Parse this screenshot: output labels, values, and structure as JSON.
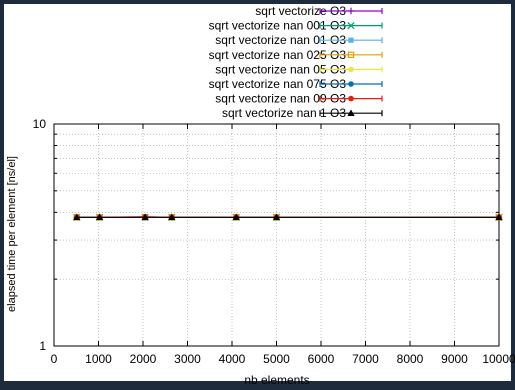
{
  "chart_data": {
    "type": "line",
    "title": "",
    "xlabel": "nb elements",
    "ylabel": "elapsed time per element [ns/el]",
    "xlim": [
      0,
      10000
    ],
    "ylim": [
      1,
      10
    ],
    "yscale": "log",
    "grid": true,
    "legend_position": "top-right",
    "x_ticks": [
      "0",
      "1000",
      "2000",
      "3000",
      "4000",
      "5000",
      "6000",
      "7000",
      "8000",
      "9000",
      "10000"
    ],
    "y_ticks": [
      "1",
      "10"
    ],
    "x": [
      512,
      1024,
      2048,
      2646,
      4096,
      5000,
      10000
    ],
    "series": [
      {
        "name": "sqrt vectorize O3",
        "color": "#9400d3",
        "marker": "plus",
        "values": [
          3.8,
          3.8,
          3.8,
          3.8,
          3.8,
          3.8,
          3.8
        ]
      },
      {
        "name": "sqrt vectorize nan 001 O3",
        "color": "#009e73",
        "marker": "cross",
        "values": [
          3.8,
          3.8,
          3.8,
          3.8,
          3.8,
          3.8,
          3.8
        ]
      },
      {
        "name": "sqrt vectorize nan 01 O3",
        "color": "#56b4e9",
        "marker": "square",
        "values": [
          3.8,
          3.8,
          3.8,
          3.8,
          3.8,
          3.8,
          3.8
        ]
      },
      {
        "name": "sqrt vectorize nan 025 O3",
        "color": "#e69f00",
        "marker": "square-open",
        "values": [
          3.8,
          3.8,
          3.8,
          3.8,
          3.8,
          3.8,
          3.8
        ]
      },
      {
        "name": "sqrt vectorize nan 05 O3",
        "color": "#f0e442",
        "marker": "circle",
        "values": [
          3.8,
          3.8,
          3.8,
          3.8,
          3.8,
          3.8,
          3.8
        ]
      },
      {
        "name": "sqrt vectorize nan 075 O3",
        "color": "#0072b2",
        "marker": "circle",
        "values": [
          3.8,
          3.8,
          3.8,
          3.8,
          3.8,
          3.8,
          3.8
        ]
      },
      {
        "name": "sqrt vectorize nan 09 O3",
        "color": "#e51e10",
        "marker": "circle",
        "values": [
          3.8,
          3.8,
          3.82,
          3.8,
          3.8,
          3.8,
          3.8
        ]
      },
      {
        "name": "sqrt vectorize nan 1 O3",
        "color": "#000000",
        "marker": "triangle",
        "values": [
          3.8,
          3.8,
          3.8,
          3.8,
          3.8,
          3.8,
          3.8
        ]
      }
    ]
  }
}
